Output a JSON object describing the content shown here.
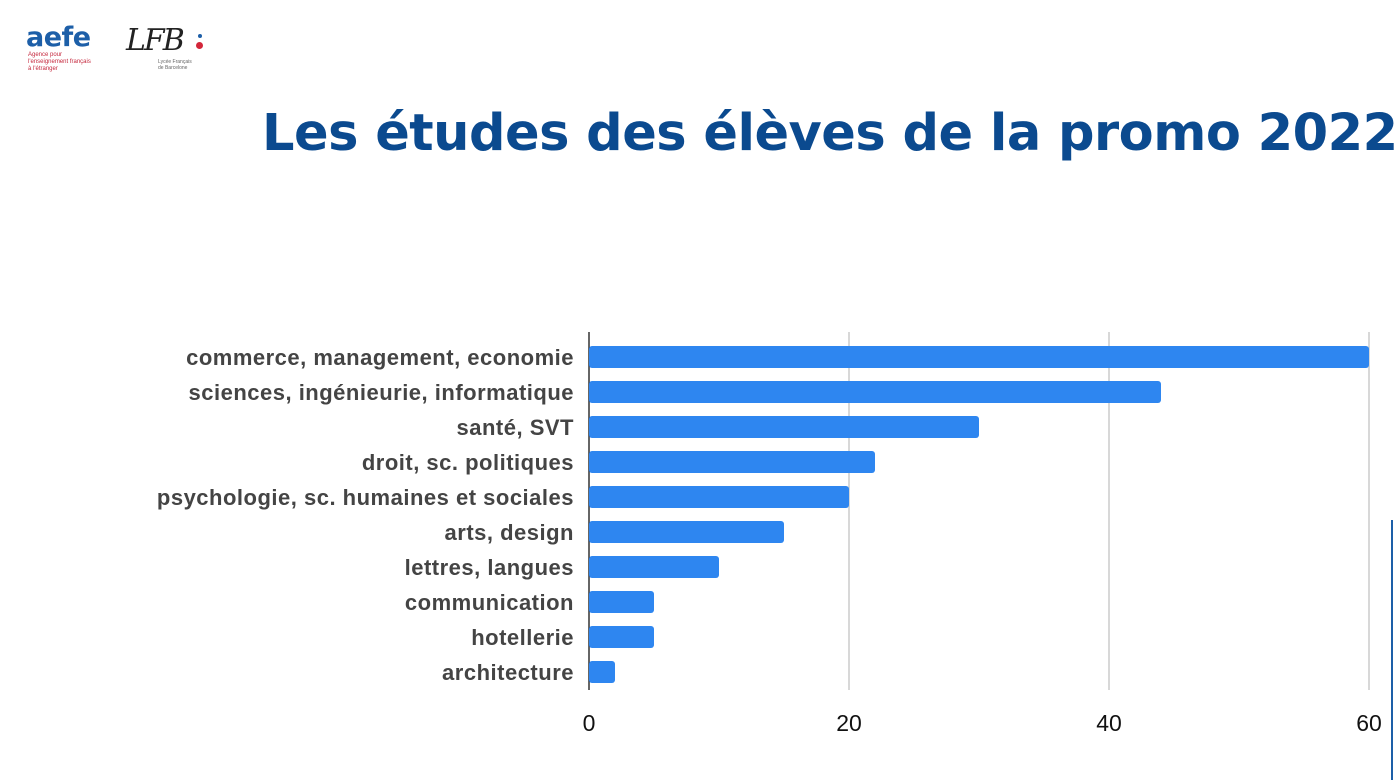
{
  "logos": {
    "aefe_word": "aefe",
    "aefe_sub1": "Agence pour",
    "aefe_sub2": "l'enseignement français",
    "aefe_sub3": "à l'étranger",
    "lfb_letters": "LFB",
    "lfb_sub1": "Lycée Français",
    "lfb_sub2": "de Barcelone"
  },
  "title": "Les études des élèves de la promo 2022",
  "colors": {
    "bar": "#2e86f0",
    "grid": "#cccccc",
    "axis": "#333333",
    "title": "#0b4a8f"
  },
  "chart_data": {
    "type": "bar",
    "orientation": "horizontal",
    "categories": [
      "commerce, management, economie",
      "sciences, ingénieurie, informatique",
      "santé, SVT",
      "droit, sc. politiques",
      "psychologie, sc. humaines et sociales",
      "arts, design",
      "lettres, langues",
      "communication",
      "hotellerie",
      "architecture"
    ],
    "values": [
      60,
      44,
      30,
      22,
      20,
      15,
      10,
      5,
      5,
      2
    ],
    "xlim": [
      0,
      60
    ],
    "xticks": [
      "0",
      "20",
      "40",
      "60"
    ],
    "grid": true,
    "legend": "none"
  }
}
